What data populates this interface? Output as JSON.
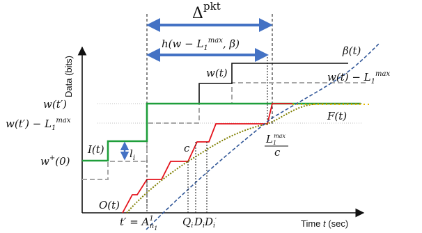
{
  "title": {
    "main": "Δ",
    "sup": "pkt"
  },
  "h_label": "h(w − L",
  "h_label_sup": "max",
  "h_label_sub": "1",
  "h_label_tail": ", β)",
  "axis": {
    "y_label": "Data (bits)",
    "x_label_pre": "Time ",
    "x_label_t": "t",
    "x_label_post": " (sec)"
  },
  "curves": {
    "beta": "β(t)",
    "w": "w(t)",
    "w_minus_pre": "w(t) − L",
    "F": "F(t)",
    "I": "I(t)",
    "O": "O(t)",
    "l_i": "l",
    "l_i_sub": "i",
    "c": "c"
  },
  "y_ticks": {
    "wtp": "w(t′)",
    "wtp_minus_pre": "w(t′) − L",
    "w0_pre": "w",
    "w0_sup": "+",
    "w0_post": "(0)"
  },
  "x_ticks": {
    "tprime": "t′ = A",
    "tprime_sup": "1",
    "tprime_sub": "n",
    "tprime_subsub": "1",
    "Qi": "Q",
    "Qi_sub": "i",
    "Di": "D",
    "Di_sub": "i",
    "Dip": "D",
    "Dip_sub": "i",
    "Dip_prime": "′",
    "frac_num": "L",
    "frac_num_sup": "max",
    "frac_num_sub": "1",
    "frac_den": "c"
  },
  "colors": {
    "green": "#1e9e3a",
    "red": "#e4121b",
    "black": "#111111",
    "grey": "#a6a6a6",
    "blue_arrow": "#4472c4",
    "beta_dash": "#2f5597",
    "olive_dot": "#7f7f00",
    "yellow_dot": "#e6b800"
  }
}
